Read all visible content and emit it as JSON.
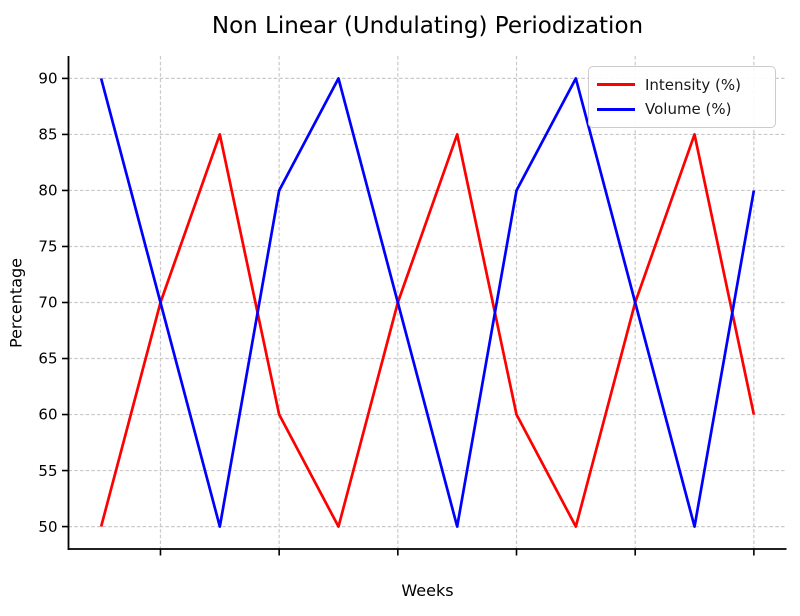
{
  "title": "Non Linear (Undulating) Periodization",
  "axes": {
    "x_label": "Weeks",
    "y_label": "Percentage"
  },
  "legend": {
    "position": "upper right",
    "entries": [
      {
        "label": "Intensity (%)",
        "color": "#ff0000"
      },
      {
        "label": "Volume (%)",
        "color": "#0000ff"
      }
    ]
  },
  "chart_data": {
    "type": "line",
    "title": "Non Linear (Undulating) Periodization",
    "xlabel": "Weeks",
    "ylabel": "Percentage",
    "x": [
      1,
      2,
      3,
      4,
      5,
      6,
      7,
      8,
      9,
      10,
      11,
      12
    ],
    "series": [
      {
        "name": "Intensity (%)",
        "color": "#ff0000",
        "values": [
          50,
          70,
          85,
          60,
          50,
          70,
          85,
          60,
          50,
          70,
          85,
          60
        ]
      },
      {
        "name": "Volume (%)",
        "color": "#0000ff",
        "values": [
          90,
          70,
          50,
          80,
          90,
          70,
          50,
          80,
          90,
          70,
          50,
          80
        ]
      }
    ],
    "xlim": [
      0.45,
      12.55
    ],
    "ylim": [
      48,
      92
    ],
    "yticks": [
      50,
      55,
      60,
      65,
      70,
      75,
      80,
      85,
      90
    ],
    "xticks": [
      2,
      4,
      6,
      8,
      10,
      12
    ],
    "x_tick_labels_visible": false,
    "grid": true,
    "grid_color": "#c9c9c9",
    "line_width": 2.7,
    "legend_position": "upper right"
  }
}
